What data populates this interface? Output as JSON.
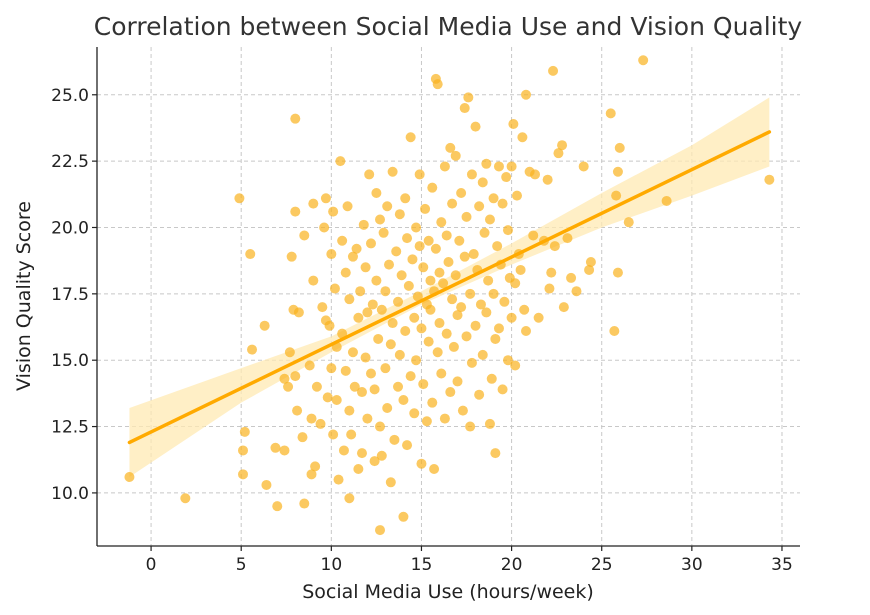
{
  "chart_data": {
    "type": "scatter",
    "title": "Correlation between Social Media Use and Vision Quality",
    "xlabel": "Social Media Use (hours/week)",
    "ylabel": "Vision Quality Score",
    "xlim": [
      -3,
      36
    ],
    "ylim": [
      8.0,
      26.8
    ],
    "xticks": [
      0,
      5,
      10,
      15,
      20,
      25,
      30,
      35
    ],
    "xtick_labels": [
      "0",
      "5",
      "10",
      "15",
      "20",
      "25",
      "30",
      "35"
    ],
    "yticks": [
      10.0,
      12.5,
      15.0,
      17.5,
      20.0,
      22.5,
      25.0
    ],
    "ytick_labels": [
      "10.0",
      "12.5",
      "15.0",
      "17.5",
      "20.0",
      "22.5",
      "25.0"
    ],
    "grid": true,
    "colors": {
      "points": "#f9b21e",
      "line": "#ffaa00",
      "band": "#ffe9b3"
    },
    "regression": {
      "x": [
        -1.2,
        34.3
      ],
      "y": [
        11.9,
        23.6
      ]
    },
    "confidence_band": {
      "x": [
        -1.2,
        5,
        10,
        15,
        20,
        25,
        30,
        34.3
      ],
      "lower": [
        10.6,
        13.4,
        15.3,
        17.1,
        18.6,
        20.0,
        21.2,
        22.3
      ],
      "upper": [
        13.2,
        14.7,
        15.9,
        17.6,
        19.4,
        21.3,
        23.1,
        24.9
      ]
    },
    "series": [
      {
        "points": [
          [
            -1.2,
            10.6
          ],
          [
            1.9,
            9.8
          ],
          [
            4.9,
            21.1
          ],
          [
            5.5,
            19.0
          ],
          [
            5.2,
            12.3
          ],
          [
            5.1,
            11.6
          ],
          [
            5.1,
            10.7
          ],
          [
            5.6,
            15.4
          ],
          [
            6.3,
            16.3
          ],
          [
            6.4,
            10.3
          ],
          [
            6.9,
            11.7
          ],
          [
            7.0,
            9.5
          ],
          [
            7.4,
            14.3
          ],
          [
            7.4,
            11.6
          ],
          [
            7.6,
            14.0
          ],
          [
            7.7,
            15.3
          ],
          [
            7.8,
            18.9
          ],
          [
            7.9,
            16.9
          ],
          [
            8.0,
            24.1
          ],
          [
            8.0,
            20.6
          ],
          [
            8.0,
            14.4
          ],
          [
            8.1,
            13.1
          ],
          [
            8.2,
            16.8
          ],
          [
            8.4,
            12.1
          ],
          [
            8.5,
            9.6
          ],
          [
            8.5,
            19.7
          ],
          [
            8.8,
            14.8
          ],
          [
            8.9,
            10.7
          ],
          [
            8.9,
            12.8
          ],
          [
            9.0,
            20.9
          ],
          [
            9.0,
            18.0
          ],
          [
            9.1,
            11.0
          ],
          [
            9.2,
            14.0
          ],
          [
            9.4,
            12.6
          ],
          [
            9.5,
            17.0
          ],
          [
            9.6,
            20.0
          ],
          [
            9.7,
            16.5
          ],
          [
            9.7,
            21.1
          ],
          [
            9.8,
            13.6
          ],
          [
            9.9,
            16.3
          ],
          [
            10.0,
            19.0
          ],
          [
            10.0,
            14.7
          ],
          [
            10.1,
            12.2
          ],
          [
            10.1,
            20.6
          ],
          [
            10.2,
            17.7
          ],
          [
            10.3,
            15.5
          ],
          [
            10.3,
            13.5
          ],
          [
            10.4,
            10.5
          ],
          [
            10.5,
            22.5
          ],
          [
            10.6,
            19.5
          ],
          [
            10.6,
            16.0
          ],
          [
            10.7,
            11.6
          ],
          [
            10.8,
            18.3
          ],
          [
            10.8,
            14.6
          ],
          [
            10.9,
            20.8
          ],
          [
            11.0,
            9.8
          ],
          [
            11.0,
            17.3
          ],
          [
            11.0,
            13.1
          ],
          [
            11.1,
            12.2
          ],
          [
            11.2,
            18.9
          ],
          [
            11.2,
            15.3
          ],
          [
            11.3,
            14.0
          ],
          [
            11.4,
            19.2
          ],
          [
            11.5,
            16.6
          ],
          [
            11.5,
            10.9
          ],
          [
            11.6,
            17.6
          ],
          [
            11.7,
            13.8
          ],
          [
            11.7,
            11.5
          ],
          [
            11.8,
            20.1
          ],
          [
            11.9,
            18.5
          ],
          [
            11.9,
            15.1
          ],
          [
            12.0,
            16.8
          ],
          [
            12.0,
            12.8
          ],
          [
            12.1,
            22.0
          ],
          [
            12.2,
            19.4
          ],
          [
            12.2,
            14.5
          ],
          [
            12.3,
            17.1
          ],
          [
            12.4,
            11.2
          ],
          [
            12.4,
            13.9
          ],
          [
            12.5,
            21.3
          ],
          [
            12.5,
            18.0
          ],
          [
            12.6,
            15.8
          ],
          [
            12.7,
            20.3
          ],
          [
            12.7,
            12.5
          ],
          [
            12.7,
            8.6
          ],
          [
            12.8,
            16.9
          ],
          [
            12.8,
            11.4
          ],
          [
            12.9,
            19.8
          ],
          [
            13.0,
            14.7
          ],
          [
            13.0,
            17.6
          ],
          [
            13.1,
            13.2
          ],
          [
            13.1,
            20.8
          ],
          [
            13.2,
            18.6
          ],
          [
            13.3,
            10.4
          ],
          [
            13.3,
            15.6
          ],
          [
            13.4,
            16.4
          ],
          [
            13.4,
            22.1
          ],
          [
            13.5,
            12.0
          ],
          [
            13.6,
            19.1
          ],
          [
            13.7,
            17.2
          ],
          [
            13.7,
            14.0
          ],
          [
            13.8,
            20.5
          ],
          [
            13.8,
            15.2
          ],
          [
            13.9,
            18.2
          ],
          [
            14.0,
            9.1
          ],
          [
            14.0,
            13.5
          ],
          [
            14.1,
            16.1
          ],
          [
            14.1,
            21.1
          ],
          [
            14.2,
            19.6
          ],
          [
            14.2,
            11.8
          ],
          [
            14.3,
            17.8
          ],
          [
            14.4,
            14.4
          ],
          [
            14.4,
            23.4
          ],
          [
            14.5,
            18.8
          ],
          [
            14.6,
            16.6
          ],
          [
            14.6,
            13.0
          ],
          [
            14.7,
            20.0
          ],
          [
            14.7,
            15.0
          ],
          [
            14.8,
            17.4
          ],
          [
            14.9,
            19.3
          ],
          [
            14.9,
            22.0
          ],
          [
            15.0,
            11.1
          ],
          [
            15.0,
            16.2
          ],
          [
            15.1,
            18.5
          ],
          [
            15.1,
            14.1
          ],
          [
            15.2,
            20.7
          ],
          [
            15.3,
            17.1
          ],
          [
            15.3,
            12.7
          ],
          [
            15.4,
            19.5
          ],
          [
            15.4,
            15.7
          ],
          [
            15.5,
            18.0
          ],
          [
            15.5,
            16.9
          ],
          [
            15.6,
            21.5
          ],
          [
            15.6,
            13.4
          ],
          [
            15.7,
            17.6
          ],
          [
            15.7,
            10.9
          ],
          [
            15.8,
            25.6
          ],
          [
            15.8,
            19.2
          ],
          [
            15.9,
            25.4
          ],
          [
            15.9,
            15.3
          ],
          [
            16.0,
            18.3
          ],
          [
            16.0,
            16.4
          ],
          [
            16.1,
            20.2
          ],
          [
            16.1,
            14.5
          ],
          [
            16.2,
            17.9
          ],
          [
            16.3,
            22.3
          ],
          [
            16.3,
            12.8
          ],
          [
            16.4,
            19.7
          ],
          [
            16.4,
            16.0
          ],
          [
            16.5,
            18.7
          ],
          [
            16.6,
            23.0
          ],
          [
            16.6,
            13.8
          ],
          [
            16.7,
            17.3
          ],
          [
            16.7,
            20.9
          ],
          [
            16.8,
            15.5
          ],
          [
            16.9,
            18.2
          ],
          [
            16.9,
            22.7
          ],
          [
            17.0,
            16.7
          ],
          [
            17.0,
            14.2
          ],
          [
            17.1,
            19.5
          ],
          [
            17.2,
            21.3
          ],
          [
            17.2,
            17.0
          ],
          [
            17.3,
            13.1
          ],
          [
            17.4,
            18.9
          ],
          [
            17.4,
            24.5
          ],
          [
            17.5,
            15.9
          ],
          [
            17.5,
            20.4
          ],
          [
            17.6,
            24.9
          ],
          [
            17.7,
            17.5
          ],
          [
            17.7,
            12.5
          ],
          [
            17.8,
            22.0
          ],
          [
            17.8,
            14.9
          ],
          [
            17.9,
            19.0
          ],
          [
            18.0,
            16.3
          ],
          [
            18.0,
            23.8
          ],
          [
            18.1,
            18.4
          ],
          [
            18.2,
            20.8
          ],
          [
            18.2,
            13.7
          ],
          [
            18.3,
            17.1
          ],
          [
            18.4,
            21.7
          ],
          [
            18.4,
            15.2
          ],
          [
            18.5,
            19.8
          ],
          [
            18.6,
            16.8
          ],
          [
            18.6,
            22.4
          ],
          [
            18.7,
            18.0
          ],
          [
            18.8,
            12.6
          ],
          [
            18.8,
            20.3
          ],
          [
            18.9,
            14.3
          ],
          [
            19.0,
            17.5
          ],
          [
            19.0,
            21.1
          ],
          [
            19.1,
            11.5
          ],
          [
            19.1,
            15.8
          ],
          [
            19.2,
            19.3
          ],
          [
            19.3,
            22.3
          ],
          [
            19.3,
            16.2
          ],
          [
            19.4,
            18.6
          ],
          [
            19.5,
            20.9
          ],
          [
            19.5,
            13.9
          ],
          [
            19.6,
            17.2
          ],
          [
            19.7,
            21.9
          ],
          [
            19.8,
            15.0
          ],
          [
            19.8,
            19.9
          ],
          [
            19.9,
            18.1
          ],
          [
            20.0,
            22.3
          ],
          [
            20.0,
            16.6
          ],
          [
            20.1,
            23.9
          ],
          [
            20.2,
            17.9
          ],
          [
            20.2,
            14.8
          ],
          [
            20.3,
            21.2
          ],
          [
            20.4,
            19.0
          ],
          [
            20.5,
            18.4
          ],
          [
            20.6,
            23.4
          ],
          [
            20.7,
            16.9
          ],
          [
            20.8,
            25.0
          ],
          [
            20.8,
            16.1
          ],
          [
            21.0,
            22.1
          ],
          [
            21.2,
            19.7
          ],
          [
            21.3,
            22.0
          ],
          [
            21.5,
            16.6
          ],
          [
            21.8,
            19.5
          ],
          [
            22.0,
            21.8
          ],
          [
            22.1,
            17.7
          ],
          [
            22.2,
            18.3
          ],
          [
            22.3,
            25.9
          ],
          [
            22.4,
            19.3
          ],
          [
            22.6,
            22.8
          ],
          [
            22.8,
            23.1
          ],
          [
            22.9,
            17.0
          ],
          [
            23.1,
            19.6
          ],
          [
            23.3,
            18.1
          ],
          [
            23.6,
            17.6
          ],
          [
            24.0,
            22.3
          ],
          [
            24.3,
            18.4
          ],
          [
            24.4,
            18.7
          ],
          [
            25.5,
            24.3
          ],
          [
            25.8,
            21.2
          ],
          [
            25.9,
            22.1
          ],
          [
            25.9,
            18.3
          ],
          [
            25.7,
            16.1
          ],
          [
            26.0,
            23.0
          ],
          [
            26.5,
            20.2
          ],
          [
            27.3,
            26.3
          ],
          [
            28.6,
            21.0
          ],
          [
            34.3,
            21.8
          ]
        ]
      }
    ]
  }
}
